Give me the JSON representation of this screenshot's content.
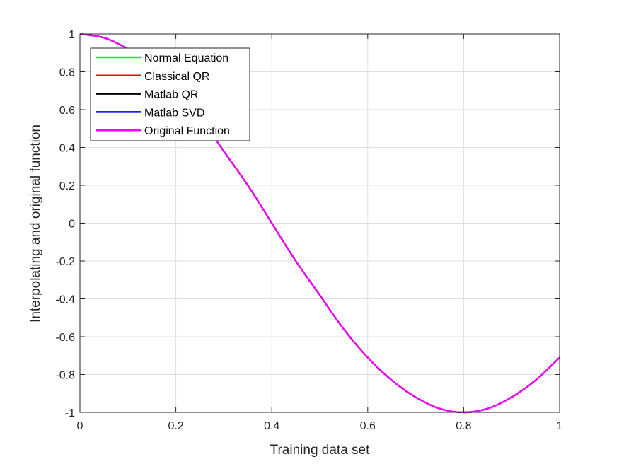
{
  "chart_data": {
    "type": "line",
    "xlabel": "Training data set",
    "ylabel": "Interpolating and original function",
    "xlim": [
      0,
      1
    ],
    "ylim": [
      -1,
      1
    ],
    "xticks": [
      "0",
      "0.2",
      "0.4",
      "0.6",
      "0.8",
      "1"
    ],
    "yticks": [
      "1",
      "0.8",
      "0.6",
      "0.4",
      "0.2",
      "0",
      "-0.2",
      "-0.4",
      "-0.6",
      "-0.8",
      "-1"
    ],
    "grid": true,
    "legend_position": "top-left",
    "x": [
      0,
      0.05,
      0.1,
      0.15,
      0.2,
      0.25,
      0.3,
      0.35,
      0.4,
      0.45,
      0.5,
      0.55,
      0.6,
      0.65,
      0.7,
      0.75,
      0.8,
      0.85,
      0.9,
      0.95,
      1
    ],
    "series": [
      {
        "name": "Normal Equation",
        "color": "#00ff00",
        "values": [
          1,
          0.98,
          0.92,
          0.83,
          0.71,
          0.56,
          0.38,
          0.2,
          0,
          -0.2,
          -0.38,
          -0.56,
          -0.71,
          -0.83,
          -0.92,
          -0.98,
          -1,
          -0.98,
          -0.92,
          -0.83,
          -0.71
        ]
      },
      {
        "name": "Classical QR",
        "color": "#ff0000",
        "values": [
          1,
          0.98,
          0.92,
          0.83,
          0.71,
          0.56,
          0.38,
          0.2,
          0,
          -0.2,
          -0.38,
          -0.56,
          -0.71,
          -0.83,
          -0.92,
          -0.98,
          -1,
          -0.98,
          -0.92,
          -0.83,
          -0.71
        ]
      },
      {
        "name": "Matlab QR",
        "color": "#000000",
        "values": [
          1,
          0.98,
          0.92,
          0.83,
          0.71,
          0.56,
          0.38,
          0.2,
          0,
          -0.2,
          -0.38,
          -0.56,
          -0.71,
          -0.83,
          -0.92,
          -0.98,
          -1,
          -0.98,
          -0.92,
          -0.83,
          -0.71
        ]
      },
      {
        "name": "Matlab SVD",
        "color": "#0000ff",
        "values": [
          1,
          0.98,
          0.92,
          0.83,
          0.71,
          0.56,
          0.38,
          0.2,
          0,
          -0.2,
          -0.38,
          -0.56,
          -0.71,
          -0.83,
          -0.92,
          -0.98,
          -1,
          -0.98,
          -0.92,
          -0.83,
          -0.71
        ]
      },
      {
        "name": "Original Function",
        "color": "#ff00ff",
        "values": [
          1,
          0.98,
          0.92,
          0.83,
          0.71,
          0.56,
          0.38,
          0.2,
          0,
          -0.2,
          -0.38,
          -0.56,
          -0.71,
          -0.83,
          -0.92,
          -0.98,
          -1,
          -0.98,
          -0.92,
          -0.83,
          -0.71
        ]
      }
    ]
  }
}
